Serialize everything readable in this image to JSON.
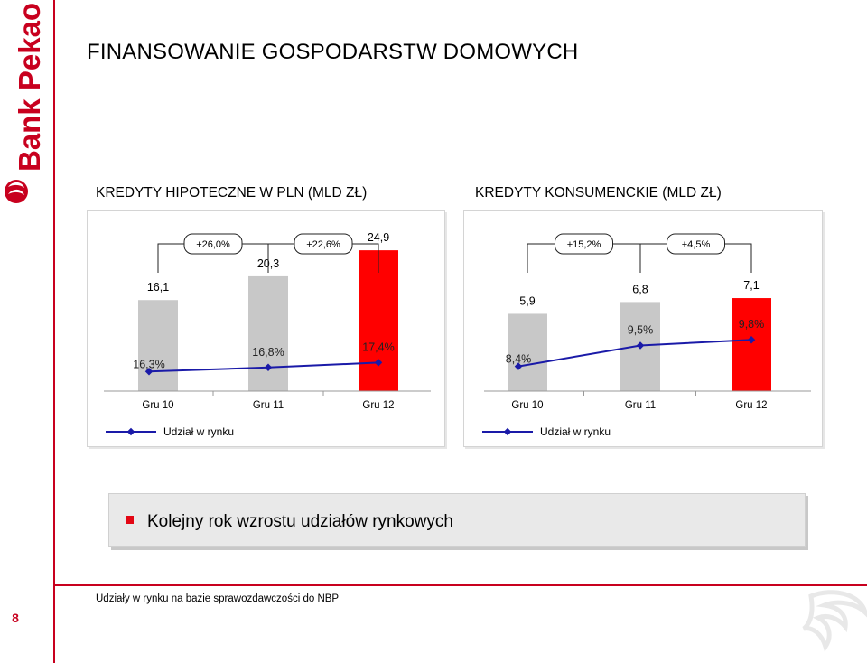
{
  "brand": {
    "name": "Bank Pekao",
    "accent": "#c8001e",
    "bar_highlight": "#ff0000",
    "bar_default": "#c8c8c8",
    "line_color": "#1a1aa8"
  },
  "header": {
    "title": "FINANSOWANIE GOSPODARSTW DOMOWYCH"
  },
  "chart_data": [
    {
      "type": "bar",
      "title": "KREDYTY HIPOTECZNE W PLN (MLD ZŁ)",
      "categories": [
        "Gru 10",
        "Gru 11",
        "Gru 12"
      ],
      "values": [
        16.1,
        20.3,
        24.9
      ],
      "value_labels": [
        "16,1",
        "20,3",
        "24,9"
      ],
      "highlight_index": 2,
      "growth_labels": [
        "+26,0%",
        "+22,6%"
      ],
      "line_series": {
        "name": "Udział w rynku",
        "values": [
          16.3,
          16.8,
          17.4
        ],
        "labels": [
          "16,3%",
          "16,8%",
          "17,4%"
        ]
      },
      "legend": "bottom-left"
    },
    {
      "type": "bar",
      "title": "KREDYTY KONSUMENCKIE (MLD ZŁ)",
      "categories": [
        "Gru 10",
        "Gru 11",
        "Gru 12"
      ],
      "values": [
        5.9,
        6.8,
        7.1
      ],
      "value_labels": [
        "5,9",
        "6,8",
        "7,1"
      ],
      "highlight_index": 2,
      "growth_labels": [
        "+15,2%",
        "+4,5%"
      ],
      "line_series": {
        "name": "Udział w rynku",
        "values": [
          8.4,
          9.5,
          9.8
        ],
        "labels": [
          "8,4%",
          "9,5%",
          "9,8%"
        ]
      },
      "legend": "bottom-left"
    }
  ],
  "banner": {
    "text": "Kolejny rok wzrostu udziałów rynkowych"
  },
  "footer": {
    "page_number": "8",
    "note": "Udziały w rynku na bazie sprawozdawczości do NBP"
  }
}
